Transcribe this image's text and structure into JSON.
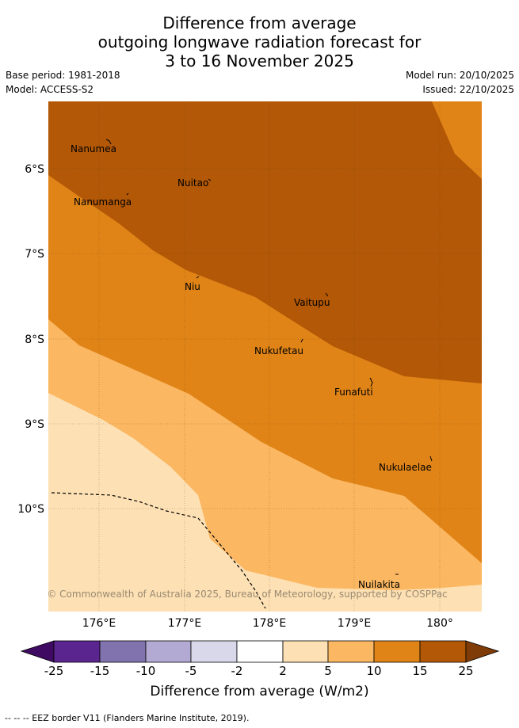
{
  "header": {
    "title_lines": [
      "Difference from average",
      "outgoing longwave radiation forecast for",
      "3 to 16 November 2025"
    ],
    "base_period": "Base period: 1981-2018",
    "model": "Model: ACCESS-S2",
    "model_run": "Model run: 20/10/2025",
    "issued": "Issued: 22/10/2025"
  },
  "map": {
    "lon_ticks": [
      "176°E",
      "177°E",
      "178°E",
      "179°E",
      "180°"
    ],
    "lat_ticks": [
      "6°S",
      "7°S",
      "8°S",
      "9°S",
      "10°S"
    ],
    "places": [
      "Nanumea",
      "Nuitao",
      "Nanumanga",
      "Niu",
      "Vaitupu",
      "Nukufetau",
      "Funafuti",
      "Nukulaelae",
      "Nuilakita"
    ],
    "copyright": "© Commonwealth of Australia 2025, Bureau of Meteorology, supported by COSPPac"
  },
  "legend": {
    "ticks": [
      "-25",
      "-15",
      "-10",
      "-5",
      "-2",
      "2",
      "5",
      "10",
      "15",
      "25"
    ],
    "colors": [
      "#3f0b62",
      "#5b2590",
      "#8173ad",
      "#b2aad2",
      "#d9d8ea",
      "#ffffff",
      "#fde0b3",
      "#fbb761",
      "#e08418",
      "#b25806",
      "#7f3b08"
    ],
    "title": "Difference from average (W/m2)"
  },
  "footnote": "--  --  -- EEZ border V11 (Flanders Marine Institute, 2019)."
}
